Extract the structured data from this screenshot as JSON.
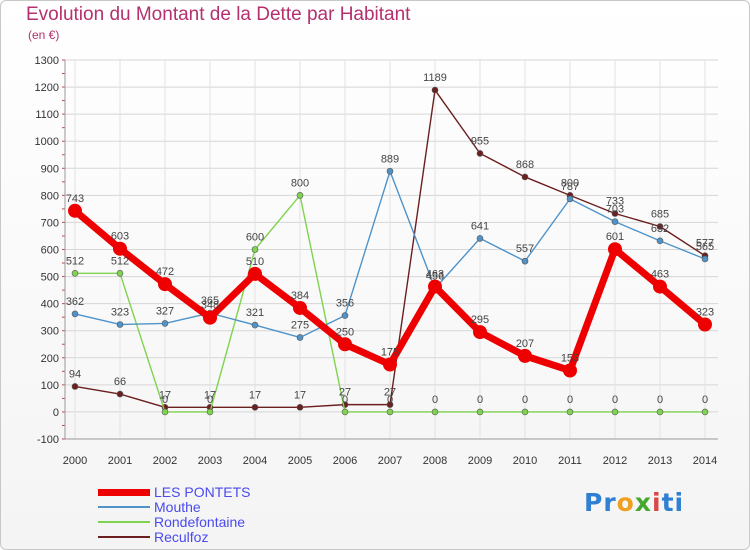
{
  "title": "Evolution du Montant de la Dette par Habitant",
  "subtitle": "(en €)",
  "logo": {
    "p1": "Pr",
    "p2": "o",
    "p3": "x",
    "p4": "i",
    "p5": "ti"
  },
  "chart_data": {
    "type": "line",
    "x": [
      "2000",
      "2001",
      "2002",
      "2003",
      "2004",
      "2005",
      "2006",
      "2007",
      "2008",
      "2009",
      "2010",
      "2011",
      "2012",
      "2013",
      "2014"
    ],
    "ylim": [
      -100,
      1300
    ],
    "yticks": [
      -100,
      0,
      100,
      200,
      300,
      400,
      500,
      600,
      700,
      800,
      900,
      1000,
      1100,
      1200,
      1300
    ],
    "grid": true,
    "legend_position": "bottom-left",
    "series": [
      {
        "name": "LES PONTETS",
        "color": "#ee0000",
        "values": [
          743,
          603,
          472,
          348,
          510,
          384,
          250,
          175,
          463,
          295,
          207,
          153,
          601,
          463,
          323
        ]
      },
      {
        "name": "Mouthe",
        "color": "#4f93c9",
        "values": [
          362,
          323,
          327,
          365,
          321,
          275,
          356,
          889,
          456,
          641,
          557,
          787,
          703,
          632,
          565
        ]
      },
      {
        "name": "Rondefontaine",
        "color": "#7fd34f",
        "values": [
          512,
          512,
          0,
          0,
          600,
          800,
          0,
          0,
          0,
          0,
          0,
          0,
          0,
          0,
          0
        ]
      },
      {
        "name": "Reculfoz",
        "color": "#6b1f1f",
        "values": [
          94,
          66,
          17,
          17,
          17,
          17,
          27,
          27,
          1189,
          955,
          868,
          800,
          733,
          685,
          577
        ]
      }
    ]
  }
}
